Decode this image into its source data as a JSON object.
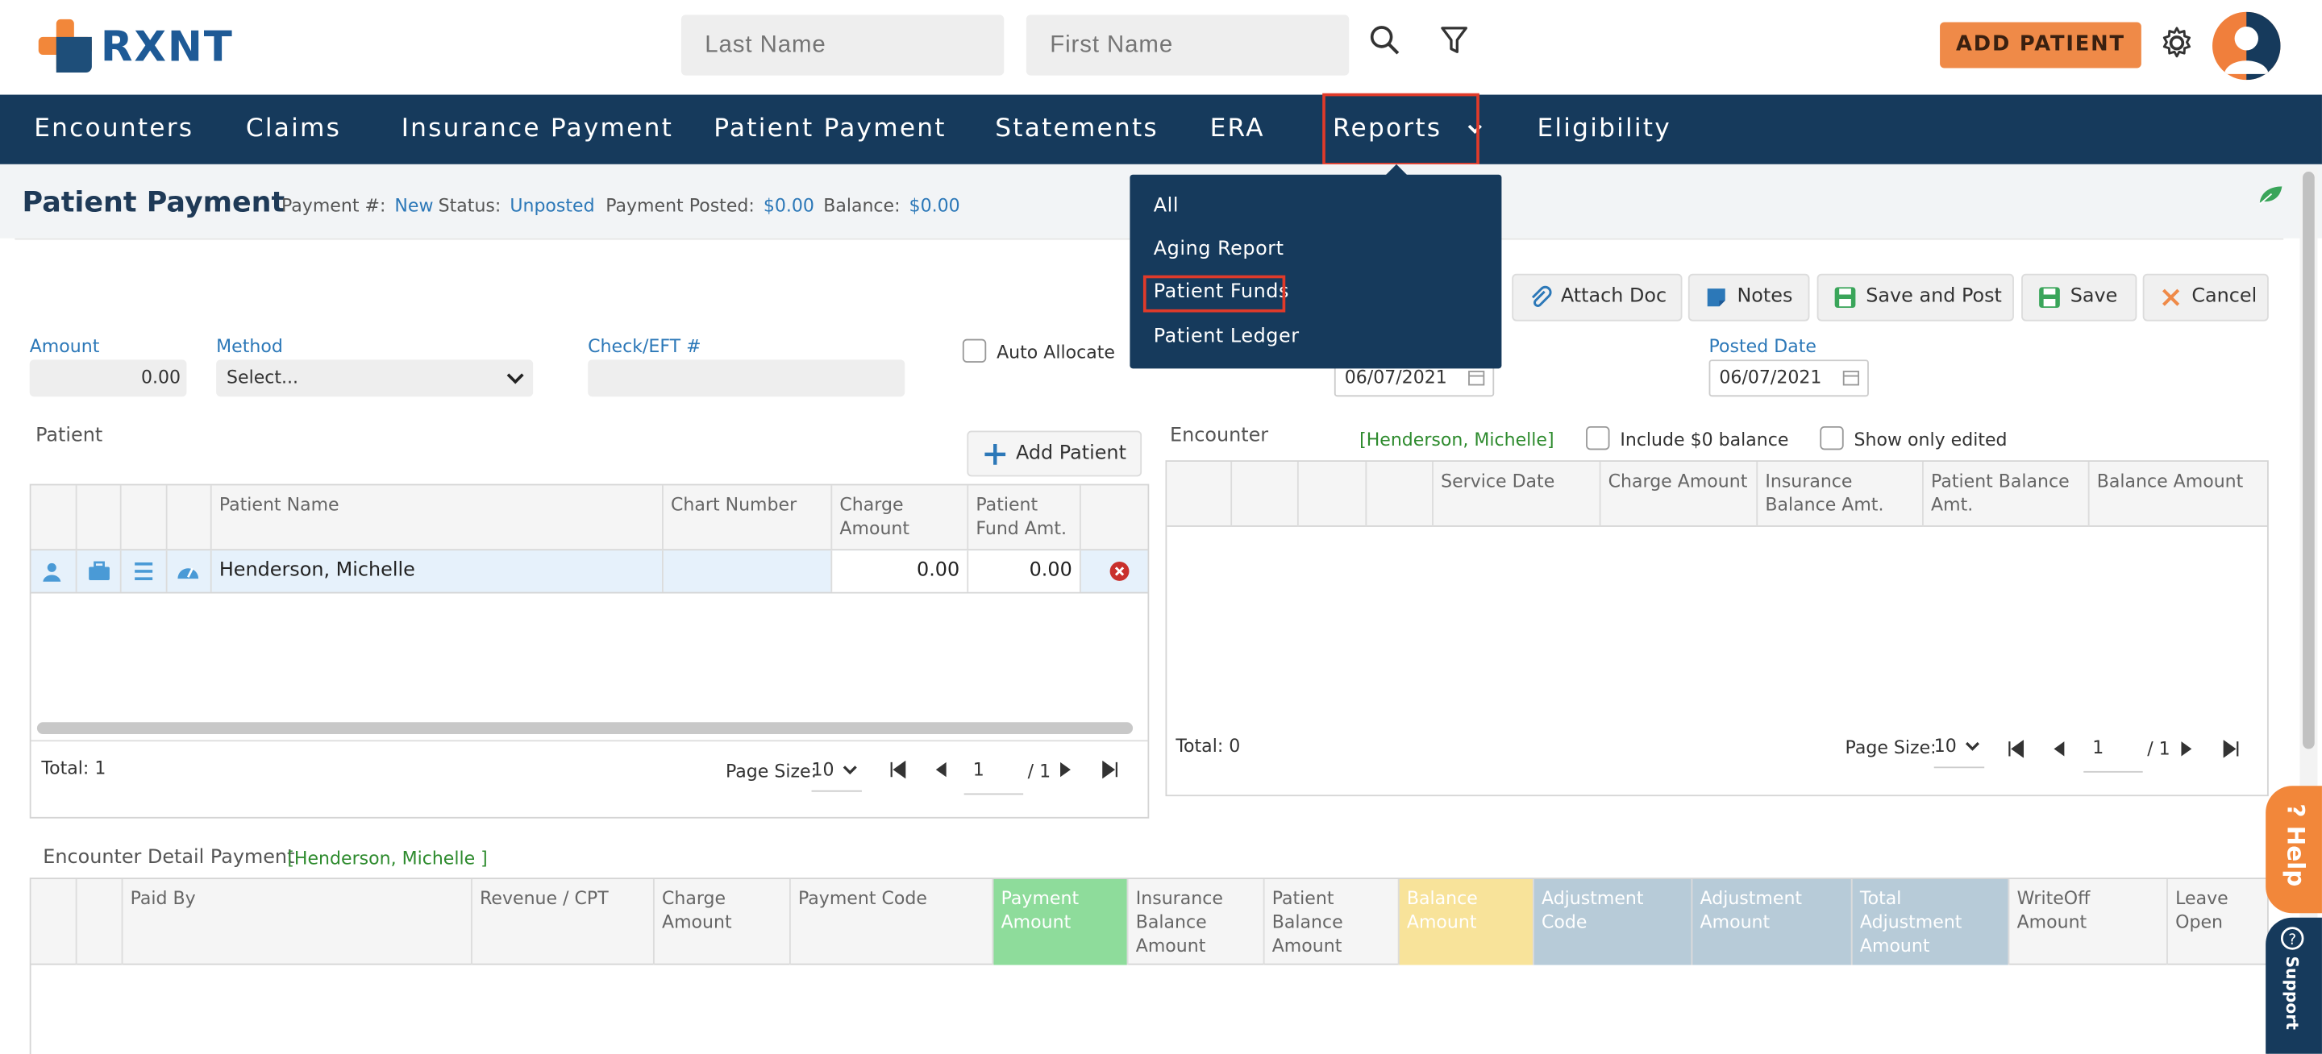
{
  "header": {
    "logo_text": "RXNT",
    "last_name_placeholder": "Last Name",
    "first_name_placeholder": "First Name",
    "add_patient_label": "ADD PATIENT"
  },
  "nav": {
    "items": [
      "Encounters",
      "Claims",
      "Insurance Payment",
      "Patient Payment",
      "Statements",
      "ERA",
      "Reports",
      "Eligibility"
    ]
  },
  "reports_menu": {
    "items": [
      "All",
      "Aging Report",
      "Patient Funds",
      "Patient Ledger"
    ],
    "highlighted": "Patient Funds"
  },
  "page": {
    "title": "Patient Payment",
    "payment_no_label": "Payment #:",
    "payment_no": "New",
    "status_label": "Status:",
    "status": "Unposted",
    "posted_label": "Payment Posted:",
    "posted": "$0.00",
    "balance_label": "Balance:",
    "balance": "$0.00"
  },
  "toolbar": {
    "attach": "Attach Doc",
    "notes": "Notes",
    "save_post": "Save and Post",
    "save": "Save",
    "cancel": "Cancel"
  },
  "form": {
    "amount_label": "Amount",
    "amount": "0.00",
    "method_label": "Method",
    "method": "Select...",
    "check_label": "Check/EFT #",
    "auto_allocate": "Auto Allocate",
    "date1": "06/07/2021",
    "posted_date_label": "Posted Date",
    "posted_date": "06/07/2021"
  },
  "patient_grid": {
    "title": "Patient",
    "add_patient": "Add Patient",
    "headers": [
      "Patient Name",
      "Chart Number",
      "Charge Amount",
      "Patient Fund Amt."
    ],
    "row": {
      "name": "Henderson, Michelle",
      "chart": "",
      "charge": "0.00",
      "fund": "0.00"
    },
    "total": "Total: 1",
    "page_size_label": "Page Size:",
    "page_size": "10",
    "page": "1",
    "page_of": "/ 1"
  },
  "encounter_grid": {
    "title": "Encounter",
    "patient_tag": "[Henderson, Michelle]",
    "include_zero": "Include $0 balance",
    "only_edited": "Show only edited",
    "headers": [
      "Service Date",
      "Charge Amount",
      "Insurance Balance Amt.",
      "Patient Balance Amt.",
      "Balance Amount"
    ],
    "total": "Total: 0",
    "page_size_label": "Page Size:",
    "page_size": "10",
    "page": "1",
    "page_of": "/ 1"
  },
  "detail_grid": {
    "title": "Encounter Detail Payment",
    "patient_tag": "[Henderson, Michelle   ]",
    "headers": [
      "Paid By",
      "Revenue / CPT",
      "Charge Amount",
      "Payment Code",
      "Payment Amount",
      "Insurance Balance Amount",
      "Patient Balance Amount",
      "Balance Amount",
      "Adjustment Code",
      "Adjustment Amount",
      "Total Adjustment Amount",
      "WriteOff Amount",
      "Leave Open"
    ]
  },
  "side": {
    "help": "Help",
    "support": "Support"
  },
  "colors": {
    "nav": "#163a5c",
    "accent": "#ef8a48",
    "link": "#2c78b8"
  }
}
